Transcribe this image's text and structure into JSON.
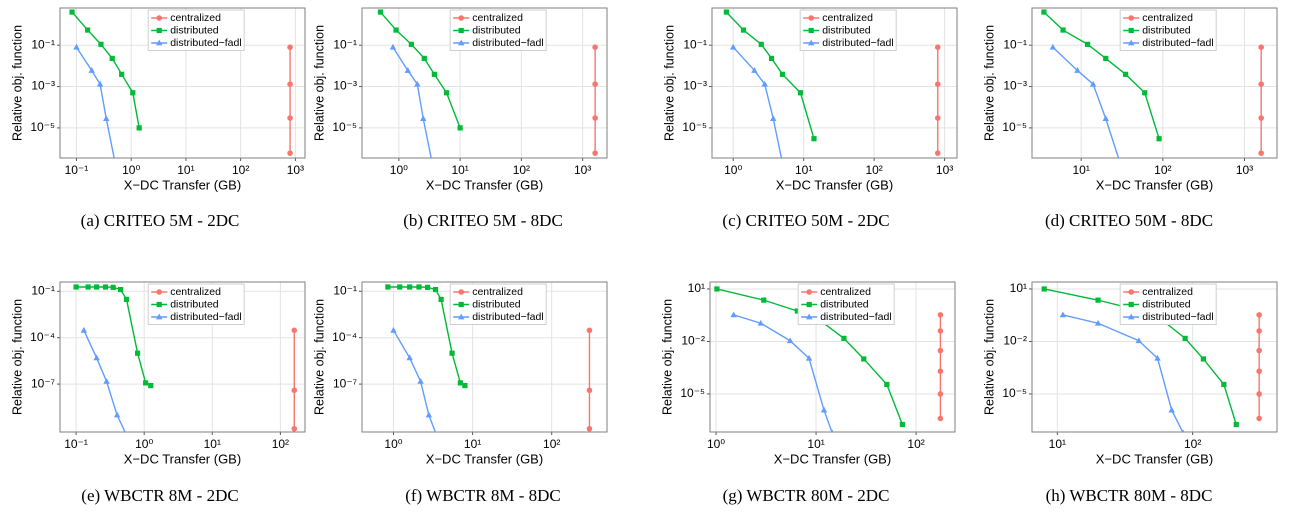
{
  "chart_data": [
    {
      "type": "line",
      "caption": "(a) CRITEO 5M - 2DC",
      "xlabel": "X−DC Transfer (GB)",
      "ylabel": "Relative obj. function",
      "xscale": "log",
      "yscale": "log",
      "grid": true,
      "legend": "top",
      "xlim": [
        0.05,
        1500
      ],
      "xticks": [
        {
          "value": 0.1,
          "label": "10⁻¹"
        },
        {
          "value": 1,
          "label": "10⁰"
        },
        {
          "value": 10,
          "label": "10¹"
        },
        {
          "value": 100,
          "label": "10²"
        },
        {
          "value": 1000,
          "label": "10³"
        }
      ],
      "ylim": [
        3.5e-07,
        6.3
      ],
      "yticks": [
        {
          "value": 0.1,
          "label": "10⁻¹"
        },
        {
          "value": 0.001,
          "label": "10⁻³"
        },
        {
          "value": 1e-05,
          "label": "10⁻⁵"
        }
      ],
      "series": [
        {
          "name": "centralized",
          "color": "#f8766d",
          "marker": "circle",
          "x": [
            800,
            800,
            800,
            800
          ],
          "values": [
            0.08,
            0.0013,
            3e-05,
            6e-07
          ]
        },
        {
          "name": "distributed",
          "color": "#00ba38",
          "marker": "square",
          "x": [
            0.083,
            0.16,
            0.28,
            0.45,
            0.67,
            1.07,
            1.4
          ],
          "values": [
            4,
            0.54,
            0.11,
            0.023,
            0.0039,
            0.0005,
            1e-05
          ]
        },
        {
          "name": "distributed−fadl",
          "color": "#619cff",
          "marker": "triangle",
          "x": [
            0.1,
            0.19,
            0.27,
            0.35,
            0.51
          ],
          "values": [
            0.08,
            0.006,
            0.0013,
            2.8e-05,
            2e-07
          ]
        }
      ]
    },
    {
      "type": "line",
      "caption": "(b) CRITEO 5M - 8DC",
      "xlabel": "X−DC Transfer (GB)",
      "ylabel": "Relative obj. function",
      "xscale": "log",
      "yscale": "log",
      "grid": true,
      "legend": "top",
      "xlim": [
        0.25,
        2500
      ],
      "xticks": [
        {
          "value": 1,
          "label": "10⁰"
        },
        {
          "value": 10,
          "label": "10¹"
        },
        {
          "value": 100,
          "label": "10²"
        },
        {
          "value": 1000,
          "label": "10³"
        }
      ],
      "ylim": [
        3.5e-07,
        6.3
      ],
      "yticks": [
        {
          "value": 0.1,
          "label": "10⁻¹"
        },
        {
          "value": 0.001,
          "label": "10⁻³"
        },
        {
          "value": 1e-05,
          "label": "10⁻⁵"
        }
      ],
      "series": [
        {
          "name": "centralized",
          "color": "#f8766d",
          "marker": "circle",
          "x": [
            1600,
            1600,
            1600,
            1600
          ],
          "values": [
            0.08,
            0.0013,
            3e-05,
            6e-07
          ]
        },
        {
          "name": "distributed",
          "color": "#00ba38",
          "marker": "square",
          "x": [
            0.5,
            0.9,
            1.6,
            2.6,
            3.8,
            6,
            10
          ],
          "values": [
            4,
            0.54,
            0.11,
            0.023,
            0.0039,
            0.0005,
            1e-05
          ]
        },
        {
          "name": "distributed−fadl",
          "color": "#619cff",
          "marker": "triangle",
          "x": [
            0.8,
            1.4,
            2,
            2.5,
            3.5
          ],
          "values": [
            0.08,
            0.006,
            0.0013,
            2.8e-05,
            2e-07
          ]
        }
      ]
    },
    {
      "type": "line",
      "caption": "(c) CRITEO 50M - 2DC",
      "xlabel": "X−DC Transfer (GB)",
      "ylabel": "Relative obj. function",
      "xscale": "log",
      "yscale": "log",
      "grid": true,
      "legend": "top",
      "xlim": [
        0.5,
        1500
      ],
      "xticks": [
        {
          "value": 1,
          "label": "10⁰"
        },
        {
          "value": 10,
          "label": "10¹"
        },
        {
          "value": 100,
          "label": "10²"
        },
        {
          "value": 1000,
          "label": "10³"
        }
      ],
      "ylim": [
        3.5e-07,
        6.3
      ],
      "yticks": [
        {
          "value": 0.1,
          "label": "10⁻¹"
        },
        {
          "value": 0.001,
          "label": "10⁻³"
        },
        {
          "value": 1e-05,
          "label": "10⁻⁵"
        }
      ],
      "series": [
        {
          "name": "centralized",
          "color": "#f8766d",
          "marker": "circle",
          "x": [
            800,
            800,
            800,
            800
          ],
          "values": [
            0.08,
            0.0013,
            3e-05,
            6e-07
          ]
        },
        {
          "name": "distributed",
          "color": "#00ba38",
          "marker": "square",
          "x": [
            0.8,
            1.4,
            2.5,
            3.5,
            5,
            9,
            14
          ],
          "values": [
            4,
            0.54,
            0.11,
            0.023,
            0.0039,
            0.0005,
            3e-06
          ]
        },
        {
          "name": "distributed−fadl",
          "color": "#619cff",
          "marker": "triangle",
          "x": [
            1,
            2,
            2.8,
            3.7,
            5
          ],
          "values": [
            0.08,
            0.006,
            0.0013,
            2.8e-05,
            2e-07
          ]
        }
      ]
    },
    {
      "type": "line",
      "caption": "(d) CRITEO 50M - 8DC",
      "xlabel": "X−DC Transfer (GB)",
      "ylabel": "Relative obj. function",
      "xscale": "log",
      "yscale": "log",
      "grid": true,
      "legend": "top",
      "xlim": [
        2.5,
        2500
      ],
      "xticks": [
        {
          "value": 10,
          "label": "10¹"
        },
        {
          "value": 100,
          "label": "10²"
        },
        {
          "value": 1000,
          "label": "10³"
        }
      ],
      "ylim": [
        3.5e-07,
        6.3
      ],
      "yticks": [
        {
          "value": 0.1,
          "label": "10⁻¹"
        },
        {
          "value": 0.001,
          "label": "10⁻³"
        },
        {
          "value": 1e-05,
          "label": "10⁻⁵"
        }
      ],
      "series": [
        {
          "name": "centralized",
          "color": "#f8766d",
          "marker": "circle",
          "x": [
            1600,
            1600,
            1600,
            1600
          ],
          "values": [
            0.08,
            0.0013,
            3e-05,
            6e-07
          ]
        },
        {
          "name": "distributed",
          "color": "#00ba38",
          "marker": "square",
          "x": [
            3.5,
            6,
            12,
            20,
            35,
            60,
            90
          ],
          "values": [
            4,
            0.54,
            0.11,
            0.023,
            0.0039,
            0.0005,
            3e-06
          ]
        },
        {
          "name": "distributed−fadl",
          "color": "#619cff",
          "marker": "triangle",
          "x": [
            4.5,
            9,
            14,
            20,
            30
          ],
          "values": [
            0.08,
            0.006,
            0.0013,
            2.8e-05,
            2e-07
          ]
        }
      ]
    },
    {
      "type": "line",
      "caption": "(e) WBCTR 8M - 2DC",
      "xlabel": "X−DC Transfer (GB)",
      "ylabel": "Relative obj. function",
      "xscale": "log",
      "yscale": "log",
      "grid": true,
      "legend": "top",
      "xlim": [
        0.058,
        230
      ],
      "xticks": [
        {
          "value": 0.1,
          "label": "10⁻¹"
        },
        {
          "value": 1,
          "label": "10⁰"
        },
        {
          "value": 10,
          "label": "10¹"
        },
        {
          "value": 100,
          "label": "10²"
        }
      ],
      "ylim": [
        8e-11,
        0.4
      ],
      "yticks": [
        {
          "value": 0.1,
          "label": "10⁻¹"
        },
        {
          "value": 0.0001,
          "label": "10⁻⁴"
        },
        {
          "value": 1e-07,
          "label": "10⁻⁷"
        }
      ],
      "series": [
        {
          "name": "centralized",
          "color": "#f8766d",
          "marker": "circle",
          "x": [
            160,
            160,
            160
          ],
          "values": [
            0.0003,
            4e-08,
            1.3e-10
          ]
        },
        {
          "name": "distributed",
          "color": "#00ba38",
          "marker": "square",
          "x": [
            0.1,
            0.15,
            0.2,
            0.27,
            0.35,
            0.45,
            0.55,
            0.8,
            1.05,
            1.25
          ],
          "values": [
            0.19,
            0.19,
            0.19,
            0.19,
            0.18,
            0.13,
            0.03,
            1e-05,
            1.2e-07,
            8e-08
          ]
        },
        {
          "name": "distributed−fadl",
          "color": "#619cff",
          "marker": "triangle",
          "x": [
            0.13,
            0.2,
            0.28,
            0.4,
            0.55
          ],
          "values": [
            0.0003,
            5e-06,
            1.5e-07,
            1e-09,
            5e-11
          ]
        }
      ]
    },
    {
      "type": "line",
      "caption": "(f) WBCTR 8M - 8DC",
      "xlabel": "X−DC Transfer (GB)",
      "ylabel": "Relative obj. function",
      "xscale": "log",
      "yscale": "log",
      "grid": true,
      "legend": "top",
      "xlim": [
        0.4,
        500
      ],
      "xticks": [
        {
          "value": 1,
          "label": "10⁰"
        },
        {
          "value": 10,
          "label": "10¹"
        },
        {
          "value": 100,
          "label": "10²"
        }
      ],
      "ylim": [
        8e-11,
        0.4
      ],
      "yticks": [
        {
          "value": 0.1,
          "label": "10⁻¹"
        },
        {
          "value": 0.0001,
          "label": "10⁻⁴"
        },
        {
          "value": 1e-07,
          "label": "10⁻⁷"
        }
      ],
      "series": [
        {
          "name": "centralized",
          "color": "#f8766d",
          "marker": "circle",
          "x": [
            300,
            300,
            300
          ],
          "values": [
            0.0003,
            4e-08,
            1.3e-10
          ]
        },
        {
          "name": "distributed",
          "color": "#00ba38",
          "marker": "square",
          "x": [
            0.85,
            1.2,
            1.6,
            2.1,
            2.7,
            3.4,
            4,
            5.5,
            7,
            8
          ],
          "values": [
            0.19,
            0.19,
            0.19,
            0.19,
            0.18,
            0.13,
            0.03,
            1e-05,
            1.2e-07,
            8e-08
          ]
        },
        {
          "name": "distributed−fadl",
          "color": "#619cff",
          "marker": "triangle",
          "x": [
            1,
            1.6,
            2.2,
            2.8,
            3.5
          ],
          "values": [
            0.0003,
            5e-06,
            1.5e-07,
            1e-09,
            5e-11
          ]
        }
      ]
    },
    {
      "type": "line",
      "caption": "(g) WBCTR 80M - 2DC",
      "xlabel": "X−DC Transfer (GB)",
      "ylabel": "Relative obj. function",
      "xscale": "log",
      "yscale": "log",
      "grid": true,
      "legend": "top",
      "xlim": [
        0.87,
        245
      ],
      "xticks": [
        {
          "value": 1,
          "label": "10⁰"
        },
        {
          "value": 10,
          "label": "10¹"
        },
        {
          "value": 100,
          "label": "10²"
        }
      ],
      "ylim": [
        6.7e-08,
        25
      ],
      "yticks": [
        {
          "value": 10,
          "label": "10¹"
        },
        {
          "value": 0.01,
          "label": "10⁻²"
        },
        {
          "value": 1e-05,
          "label": "10⁻⁵"
        }
      ],
      "series": [
        {
          "name": "centralized",
          "color": "#f8766d",
          "marker": "circle",
          "x": [
            175,
            175,
            175,
            175,
            175,
            175
          ],
          "values": [
            0.33,
            0.04,
            0.003,
            0.0002,
            1e-05,
            4e-07
          ]
        },
        {
          "name": "distributed",
          "color": "#00ba38",
          "marker": "square",
          "x": [
            1.02,
            3,
            6.5,
            11.5,
            19,
            30,
            51,
            73
          ],
          "values": [
            10,
            2.3,
            0.55,
            0.13,
            0.015,
            0.001,
            3.5e-05,
            1.8e-07
          ]
        },
        {
          "name": "distributed−fadl",
          "color": "#619cff",
          "marker": "triangle",
          "x": [
            1.5,
            2.8,
            5.5,
            8.5,
            12,
            14.5
          ],
          "values": [
            0.33,
            0.11,
            0.011,
            0.0011,
            1.2e-06,
            6e-08
          ]
        }
      ]
    },
    {
      "type": "line",
      "caption": "(h) WBCTR 80M - 8DC",
      "xlabel": "X−DC Transfer (GB)",
      "ylabel": "Relative obj. function",
      "xscale": "log",
      "yscale": "log",
      "grid": true,
      "legend": "top",
      "xlim": [
        6.5,
        420
      ],
      "xticks": [
        {
          "value": 10,
          "label": "10¹"
        },
        {
          "value": 100,
          "label": "10²"
        }
      ],
      "ylim": [
        6.7e-08,
        25
      ],
      "yticks": [
        {
          "value": 10,
          "label": "10¹"
        },
        {
          "value": 0.01,
          "label": "10⁻²"
        },
        {
          "value": 1e-05,
          "label": "10⁻⁵"
        }
      ],
      "series": [
        {
          "name": "centralized",
          "color": "#f8766d",
          "marker": "circle",
          "x": [
            310,
            310,
            310,
            310,
            310,
            310
          ],
          "values": [
            0.33,
            0.04,
            0.003,
            0.0002,
            1e-05,
            4e-07
          ]
        },
        {
          "name": "distributed",
          "color": "#00ba38",
          "marker": "square",
          "x": [
            8,
            20,
            42,
            62,
            88,
            120,
            170,
            210
          ],
          "values": [
            10,
            2.3,
            0.55,
            0.13,
            0.015,
            0.001,
            3.5e-05,
            1.8e-07
          ]
        },
        {
          "name": "distributed−fadl",
          "color": "#619cff",
          "marker": "triangle",
          "x": [
            11,
            20,
            40,
            55,
            70,
            85
          ],
          "values": [
            0.33,
            0.11,
            0.011,
            0.0011,
            1.2e-06,
            6e-08
          ]
        }
      ]
    }
  ]
}
